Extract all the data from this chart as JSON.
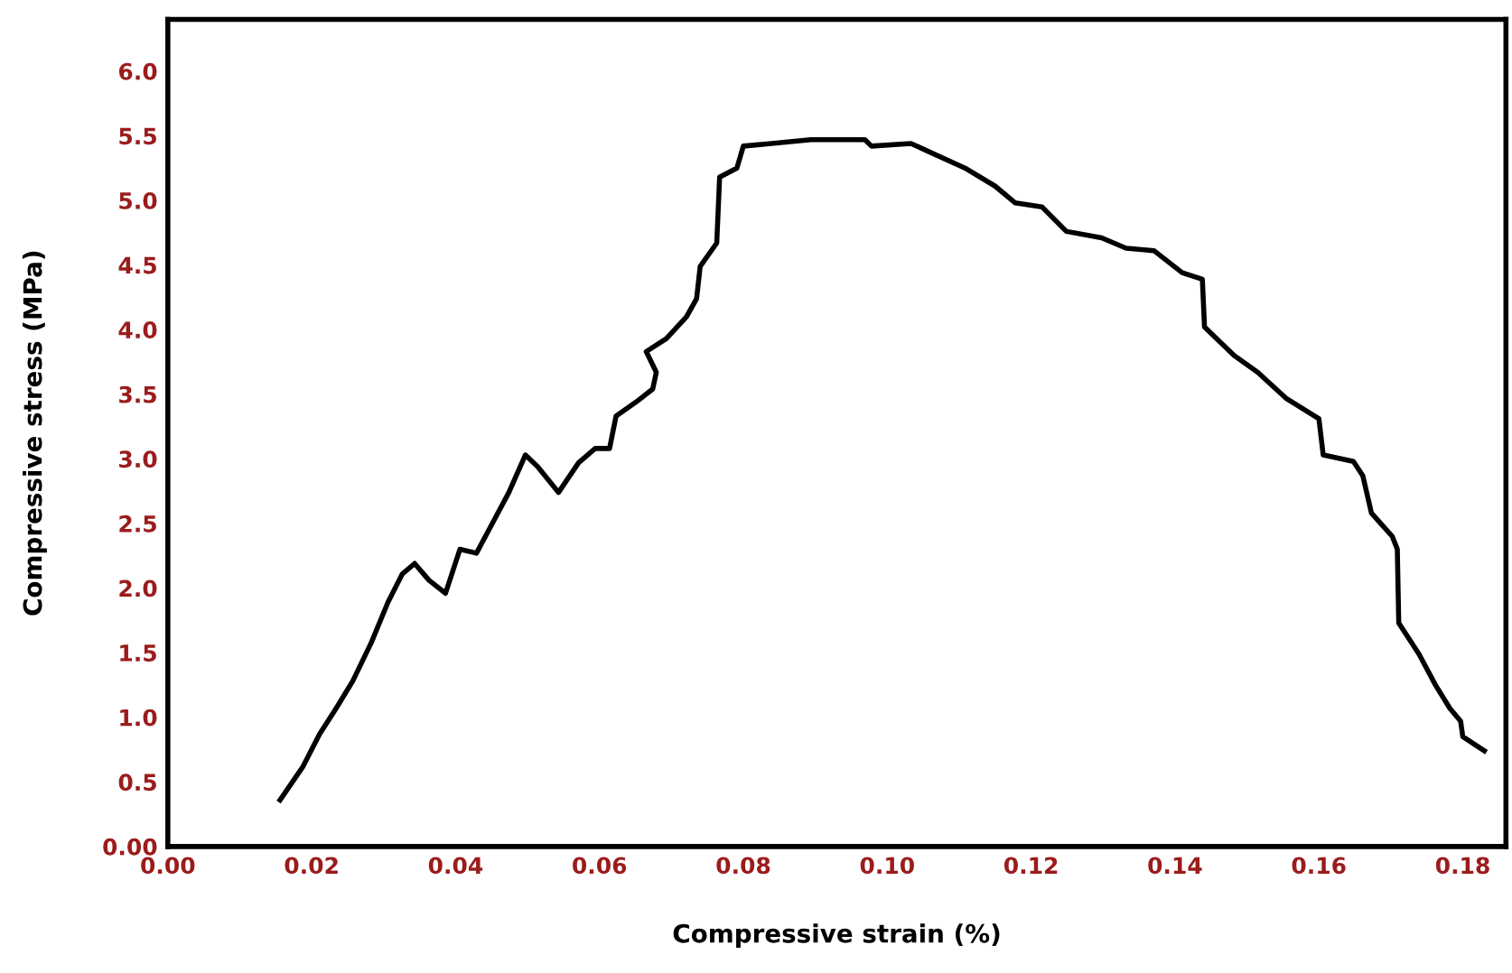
{
  "chart_data": {
    "type": "line",
    "xlabel": "Compressive strain (%)",
    "ylabel": "Compressive stress (MPa)",
    "xlim": [
      0,
      0.186
    ],
    "ylim": [
      0,
      6.4
    ],
    "xticks": [
      {
        "value": 0,
        "label": "0.00"
      },
      0.02,
      0.04,
      0.06,
      0.08,
      {
        "value": 0.1,
        "label": "0.10"
      },
      0.12,
      0.14,
      0.16,
      0.18
    ],
    "yticks": [
      {
        "value": 0,
        "label": "0.00"
      },
      0.5,
      {
        "value": 1,
        "label": "1.0"
      },
      1.5,
      {
        "value": 2,
        "label": "2.0"
      },
      2.5,
      {
        "value": 3,
        "label": "3.0"
      },
      3.5,
      {
        "value": 4,
        "label": "4.0"
      },
      4.5,
      {
        "value": 5,
        "label": "5.0"
      },
      5.5,
      {
        "value": 6,
        "label": "6.0"
      }
    ],
    "grid": false,
    "marker": "none",
    "line_style": "solid",
    "series": [
      {
        "color": "#000000",
        "x": [
          0.0156,
          0.0188,
          0.0211,
          0.0234,
          0.0257,
          0.0283,
          0.0306,
          0.0326,
          0.0343,
          0.0363,
          0.0386,
          0.0406,
          0.0429,
          0.0451,
          0.0474,
          0.0497,
          0.0514,
          0.0543,
          0.0571,
          0.0594,
          0.0614,
          0.0623,
          0.0651,
          0.0674,
          0.0679,
          0.0665,
          0.0693,
          0.0721,
          0.0735,
          0.074,
          0.0763,
          0.0767,
          0.0791,
          0.08,
          0.0839,
          0.0894,
          0.0969,
          0.0978,
          0.1033,
          0.1108,
          0.115,
          0.1178,
          0.1215,
          0.1249,
          0.1298,
          0.1332,
          0.1371,
          0.141,
          0.1438,
          0.1441,
          0.1482,
          0.1515,
          0.1554,
          0.16,
          0.1606,
          0.1648,
          0.1661,
          0.1673,
          0.1702,
          0.1709,
          0.1711,
          0.1739,
          0.1762,
          0.1782,
          0.1797,
          0.18,
          0.183
        ],
        "values": [
          0.36,
          0.62,
          0.87,
          1.07,
          1.28,
          1.58,
          1.89,
          2.11,
          2.19,
          2.06,
          1.96,
          2.3,
          2.27,
          2.5,
          2.74,
          3.03,
          2.94,
          2.74,
          2.97,
          3.08,
          3.08,
          3.33,
          3.44,
          3.54,
          3.67,
          3.83,
          3.93,
          4.1,
          4.24,
          4.49,
          4.67,
          5.18,
          5.25,
          5.42,
          5.44,
          5.47,
          5.47,
          5.42,
          5.44,
          5.25,
          5.11,
          4.98,
          4.95,
          4.76,
          4.71,
          4.63,
          4.61,
          4.44,
          4.39,
          4.02,
          3.8,
          3.67,
          3.47,
          3.31,
          3.03,
          2.98,
          2.87,
          2.58,
          2.4,
          2.3,
          1.73,
          1.49,
          1.25,
          1.07,
          0.97,
          0.85,
          0.74
        ]
      }
    ]
  }
}
